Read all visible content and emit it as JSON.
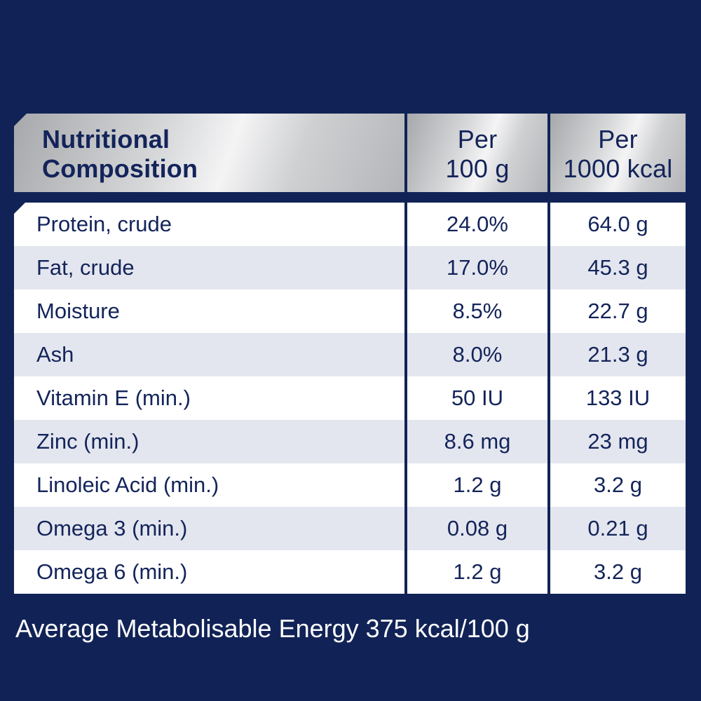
{
  "header": {
    "col1_line1": "Nutritional",
    "col1_line2": "Composition",
    "col2_line1": "Per",
    "col2_line2": "100 g",
    "col3_line1": "Per",
    "col3_line2": "1000 kcal"
  },
  "rows": [
    {
      "name": "Protein, crude",
      "per100g": "24.0%",
      "per1000kcal": "64.0 g"
    },
    {
      "name": "Fat, crude",
      "per100g": "17.0%",
      "per1000kcal": "45.3 g"
    },
    {
      "name": "Moisture",
      "per100g": "8.5%",
      "per1000kcal": "22.7 g"
    },
    {
      "name": "Ash",
      "per100g": "8.0%",
      "per1000kcal": "21.3 g"
    },
    {
      "name": "Vitamin E (min.)",
      "per100g": "50 IU",
      "per1000kcal": "133 IU"
    },
    {
      "name": "Zinc (min.)",
      "per100g": "8.6 mg",
      "per1000kcal": "23 mg"
    },
    {
      "name": "Linoleic Acid (min.)",
      "per100g": "1.2 g",
      "per1000kcal": "3.2 g"
    },
    {
      "name": "Omega 3 (min.)",
      "per100g": "0.08 g",
      "per1000kcal": "0.21 g"
    },
    {
      "name": "Omega 6 (min.)",
      "per100g": "1.2 g",
      "per1000kcal": "3.2 g"
    }
  ],
  "footer": "Average Metabolisable Energy 375 kcal/100 g",
  "colors": {
    "background": "#112356",
    "text_dark": "#13245a",
    "row_alt": "#e4e6ef"
  }
}
